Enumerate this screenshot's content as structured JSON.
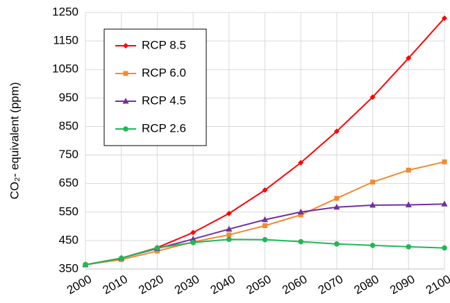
{
  "chart_data": {
    "type": "line",
    "y_label": "CO₂- equivalent (ppm)",
    "x": [
      2000,
      2010,
      2020,
      2030,
      2040,
      2050,
      2060,
      2070,
      2080,
      2090,
      2100
    ],
    "xlim": [
      2000,
      2100
    ],
    "xticks": [
      2000,
      2010,
      2020,
      2030,
      2040,
      2050,
      2060,
      2070,
      2080,
      2090,
      2100
    ],
    "ylim": [
      350,
      1250
    ],
    "yticks": [
      350,
      450,
      550,
      650,
      750,
      850,
      950,
      1050,
      1150,
      1250
    ],
    "grid": true,
    "legend": "upper left",
    "series": [
      {
        "name": "RCP 8.5",
        "color": "#ff0000",
        "marker": "diamond",
        "values": [
          365,
          388,
          425,
          478,
          545,
          627,
          723,
          833,
          953,
          1090,
          1230
        ]
      },
      {
        "name": "RCP 6.0",
        "color": "#f28a30",
        "marker": "square",
        "values": [
          365,
          383,
          413,
          445,
          470,
          502,
          540,
          598,
          655,
          697,
          726
        ]
      },
      {
        "name": "RCP 4.5",
        "color": "#7030a0",
        "marker": "triangle",
        "values": [
          365,
          388,
          422,
          455,
          490,
          523,
          550,
          567,
          574,
          575,
          578
        ]
      },
      {
        "name": "RCP 2.6",
        "color": "#1db954",
        "marker": "circle",
        "values": [
          365,
          388,
          424,
          443,
          454,
          453,
          446,
          438,
          433,
          428,
          424
        ]
      }
    ]
  }
}
